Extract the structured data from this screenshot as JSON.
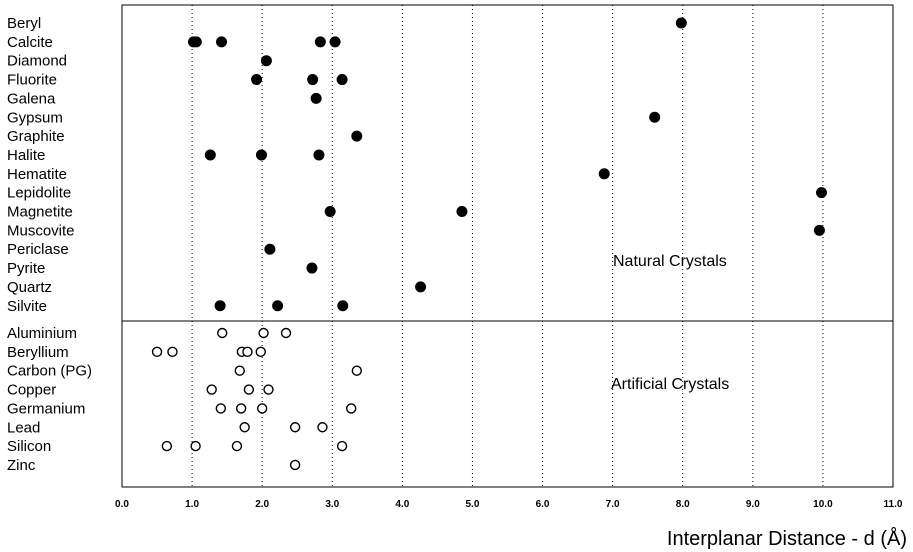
{
  "chart_data": {
    "type": "scatter",
    "title": "",
    "xlabel": "Interplanar Distance - d (Å)",
    "ylabel": "",
    "xlim": [
      0,
      11
    ],
    "x_ticks": [
      "0.0",
      "1.0",
      "2.0",
      "3.0",
      "4.0",
      "5.0",
      "6.0",
      "7.0",
      "8.0",
      "9.0",
      "10.0",
      "11.0"
    ],
    "grid": "vertical dotted",
    "groups": [
      {
        "name": "Natural Crystals",
        "marker": "filled-circle",
        "items": [
          {
            "label": "Beryl",
            "values": [
              7.98
            ]
          },
          {
            "label": "Calcite",
            "values": [
              1.02,
              1.06,
              1.42,
              2.83,
              3.04
            ]
          },
          {
            "label": "Diamond",
            "values": [
              2.06
            ]
          },
          {
            "label": "Fluorite",
            "values": [
              1.92,
              2.72,
              3.14
            ]
          },
          {
            "label": "Galena",
            "values": [
              2.77
            ]
          },
          {
            "label": "Gypsum",
            "values": [
              7.6
            ]
          },
          {
            "label": "Graphite",
            "values": [
              3.35
            ]
          },
          {
            "label": "Halite",
            "values": [
              1.26,
              1.99,
              2.81
            ]
          },
          {
            "label": "Hematite",
            "values": [
              6.88
            ]
          },
          {
            "label": "Lepidolite",
            "values": [
              9.98
            ]
          },
          {
            "label": "Magnetite",
            "values": [
              2.97,
              4.85
            ]
          },
          {
            "label": "Muscovite",
            "values": [
              9.95
            ]
          },
          {
            "label": "Periclase",
            "values": [
              2.11
            ]
          },
          {
            "label": "Pyrite",
            "values": [
              2.71
            ]
          },
          {
            "label": "Quartz",
            "values": [
              4.26
            ]
          },
          {
            "label": "Silvite",
            "values": [
              1.4,
              2.22,
              3.15
            ]
          }
        ]
      },
      {
        "name": "Artificial Crystals",
        "marker": "open-circle",
        "items": [
          {
            "label": "Aluminium",
            "values": [
              1.43,
              2.02,
              2.34
            ]
          },
          {
            "label": "Beryllium",
            "values": [
              0.5,
              0.72,
              1.71,
              1.79,
              1.98
            ]
          },
          {
            "label": "Carbon (PG)",
            "values": [
              1.68,
              3.35
            ]
          },
          {
            "label": "Copper",
            "values": [
              1.28,
              1.81,
              2.09
            ]
          },
          {
            "label": "Germanium",
            "values": [
              1.41,
              1.7,
              2.0,
              3.27
            ]
          },
          {
            "label": "Lead",
            "values": [
              1.75,
              2.47,
              2.86
            ]
          },
          {
            "label": "Silicon",
            "values": [
              0.64,
              1.05,
              1.64,
              3.14
            ]
          },
          {
            "label": "Zinc",
            "values": [
              2.47
            ]
          }
        ]
      }
    ]
  }
}
